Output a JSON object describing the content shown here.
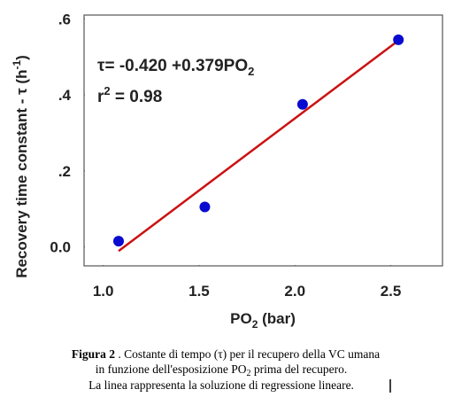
{
  "chart_data": {
    "type": "scatter",
    "x_label": [
      "PO",
      "2",
      " (bar)"
    ],
    "y_label": [
      "Recovery time constant - τ (h",
      "-1",
      ")"
    ],
    "annotations": {
      "equation": [
        "τ= -0.420 +0.379PO",
        "2"
      ],
      "r2": [
        "r",
        "2",
        " = 0.98"
      ]
    },
    "x": [
      1.08,
      1.53,
      2.04,
      2.54
    ],
    "values": [
      0.015,
      0.105,
      0.375,
      0.545
    ],
    "color": "#0a0ad0",
    "fit_line": {
      "x": [
        1.08,
        2.54
      ],
      "values": [
        -0.011,
        0.543
      ],
      "color": "#cc1111"
    },
    "xlim": [
      0.9,
      2.77
    ],
    "ylim": [
      -0.05,
      0.61
    ],
    "xticks": [
      {
        "value": 1,
        "label": "1.0"
      },
      1.5,
      {
        "value": 2,
        "label": "2.0"
      },
      2.5
    ],
    "yticks": [
      {
        "value": 0,
        "label": "0.0"
      },
      {
        "value": 0.2,
        "label": ".2"
      },
      {
        "value": 0.4,
        "label": ".4"
      },
      {
        "value": 0.6,
        "label": ".6"
      }
    ]
  },
  "caption": {
    "label": "Figura 2",
    "line1": " . Costante di tempo (τ) per il recupero della VC umana",
    "line2": [
      "in funzione dell'esposizione PO",
      "2",
      " prima del recupero."
    ],
    "line3": "La linea rappresenta la soluzione di regressione lineare."
  }
}
